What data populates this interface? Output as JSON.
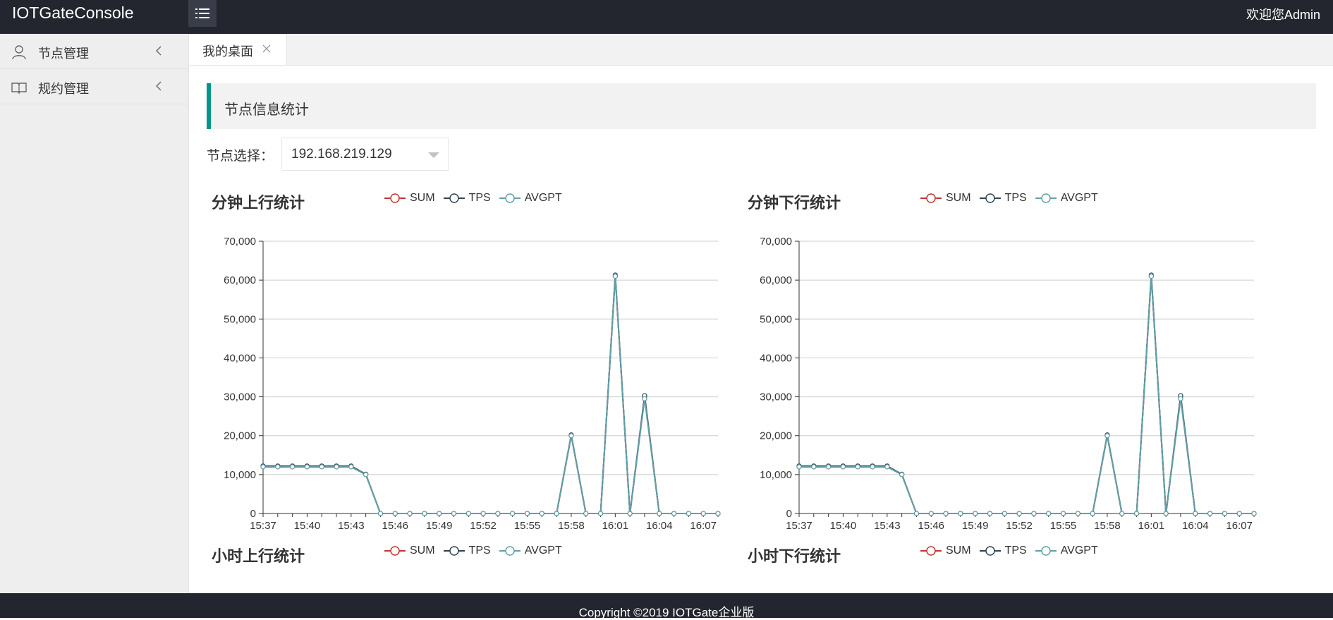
{
  "app": {
    "title": "IOTGateConsole",
    "welcome": "欢迎您Admin"
  },
  "sidebar": {
    "items": [
      {
        "label": "节点管理",
        "icon": "user-icon"
      },
      {
        "label": "规约管理",
        "icon": "book-icon"
      }
    ]
  },
  "tabs": [
    {
      "label": "我的桌面"
    }
  ],
  "panel": {
    "title": "节点信息统计"
  },
  "node_select": {
    "label": "节点选择：",
    "value": "192.168.219.129"
  },
  "legend": [
    "SUM",
    "TPS",
    "AVGPT"
  ],
  "colors": {
    "sum": "#c23531",
    "tps": "#2f4554",
    "avgpt": "#61a0a8",
    "accent": "#009688",
    "header": "#23262e"
  },
  "charts": {
    "minute_up": {
      "title": "分钟上行统计"
    },
    "minute_down": {
      "title": "分钟下行统计"
    },
    "hour_up": {
      "title": "小时上行统计"
    },
    "hour_down": {
      "title": "小时下行统计"
    }
  },
  "chart_data": [
    {
      "type": "line",
      "title": "分钟上行统计",
      "ylim": [
        0,
        70000
      ],
      "y_ticks": [
        "0",
        "10,000",
        "20,000",
        "30,000",
        "40,000",
        "50,000",
        "60,000",
        "70,000"
      ],
      "x": [
        "15:37",
        "15:38",
        "15:39",
        "15:40",
        "15:41",
        "15:42",
        "15:43",
        "15:44",
        "15:45",
        "15:46",
        "15:47",
        "15:48",
        "15:49",
        "15:50",
        "15:51",
        "15:52",
        "15:53",
        "15:54",
        "15:55",
        "15:56",
        "15:57",
        "15:58",
        "15:59",
        "16:00",
        "16:01",
        "16:02",
        "16:03",
        "16:04",
        "16:05",
        "16:06",
        "16:07",
        "16:08"
      ],
      "x_tick_labels": [
        "15:37",
        "15:40",
        "15:43",
        "15:46",
        "15:49",
        "15:52",
        "15:55",
        "15:58",
        "16:01",
        "16:04",
        "16:07"
      ],
      "series": [
        {
          "name": "SUM",
          "values": [
            12000,
            12000,
            12000,
            12000,
            12000,
            12000,
            12000,
            10000,
            0,
            0,
            0,
            0,
            0,
            0,
            0,
            0,
            0,
            0,
            0,
            0,
            0,
            20000,
            0,
            0,
            61000,
            0,
            30000,
            0,
            0,
            0,
            0,
            0
          ]
        },
        {
          "name": "TPS",
          "values": [
            12200,
            12200,
            12200,
            12200,
            12200,
            12200,
            12200,
            10100,
            0,
            0,
            0,
            0,
            0,
            0,
            0,
            0,
            0,
            0,
            0,
            0,
            0,
            20200,
            0,
            0,
            61300,
            0,
            30300,
            0,
            0,
            0,
            0,
            0
          ]
        },
        {
          "name": "AVGPT",
          "values": [
            12000,
            12000,
            12000,
            12000,
            12000,
            12000,
            12000,
            10000,
            0,
            0,
            0,
            0,
            0,
            0,
            0,
            0,
            0,
            0,
            0,
            0,
            0,
            20000,
            0,
            0,
            61000,
            0,
            29500,
            0,
            0,
            0,
            0,
            0
          ]
        }
      ]
    },
    {
      "type": "line",
      "title": "分钟下行统计",
      "ylim": [
        0,
        70000
      ],
      "y_ticks": [
        "0",
        "10,000",
        "20,000",
        "30,000",
        "40,000",
        "50,000",
        "60,000",
        "70,000"
      ],
      "x": [
        "15:37",
        "15:38",
        "15:39",
        "15:40",
        "15:41",
        "15:42",
        "15:43",
        "15:44",
        "15:45",
        "15:46",
        "15:47",
        "15:48",
        "15:49",
        "15:50",
        "15:51",
        "15:52",
        "15:53",
        "15:54",
        "15:55",
        "15:56",
        "15:57",
        "15:58",
        "15:59",
        "16:00",
        "16:01",
        "16:02",
        "16:03",
        "16:04",
        "16:05",
        "16:06",
        "16:07",
        "16:08"
      ],
      "x_tick_labels": [
        "15:37",
        "15:40",
        "15:43",
        "15:46",
        "15:49",
        "15:52",
        "15:55",
        "15:58",
        "16:01",
        "16:04",
        "16:07"
      ],
      "series": [
        {
          "name": "SUM",
          "values": [
            12000,
            12000,
            12000,
            12000,
            12000,
            12000,
            12000,
            10000,
            0,
            0,
            0,
            0,
            0,
            0,
            0,
            0,
            0,
            0,
            0,
            0,
            0,
            20000,
            0,
            0,
            61000,
            0,
            30000,
            0,
            0,
            0,
            0,
            0
          ]
        },
        {
          "name": "TPS",
          "values": [
            12200,
            12200,
            12200,
            12200,
            12200,
            12200,
            12200,
            10100,
            0,
            0,
            0,
            0,
            0,
            0,
            0,
            0,
            0,
            0,
            0,
            0,
            0,
            20200,
            0,
            0,
            61300,
            0,
            30300,
            0,
            0,
            0,
            0,
            0
          ]
        },
        {
          "name": "AVGPT",
          "values": [
            12000,
            12000,
            12000,
            12000,
            12000,
            12000,
            12000,
            10000,
            0,
            0,
            0,
            0,
            0,
            0,
            0,
            0,
            0,
            0,
            0,
            0,
            0,
            20000,
            0,
            0,
            61000,
            0,
            29500,
            0,
            0,
            0,
            0,
            0
          ]
        }
      ]
    }
  ],
  "footer": {
    "copyright": "Copyright ©2019 IOTGate企业版"
  }
}
